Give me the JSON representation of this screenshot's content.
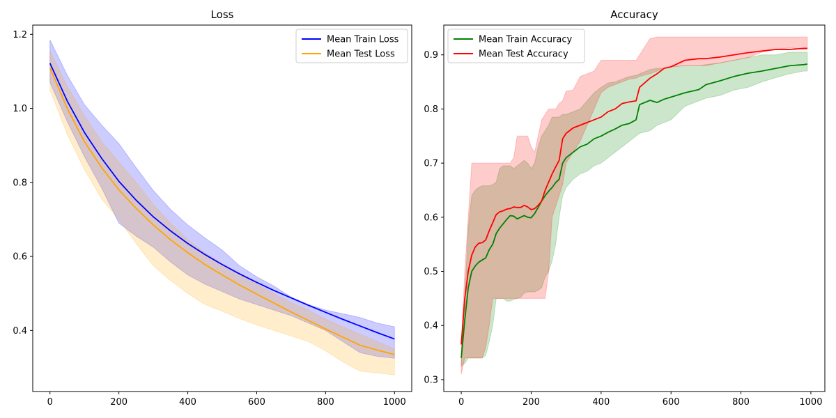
{
  "chart_data": [
    {
      "type": "line",
      "title": "Loss",
      "xlabel": "",
      "ylabel": "",
      "xlim": [
        -50,
        1050
      ],
      "ylim": [
        0.235,
        1.225
      ],
      "xticks": [
        0,
        200,
        400,
        600,
        800,
        1000
      ],
      "yticks": [
        0.4,
        0.6,
        0.8,
        1.0,
        1.2
      ],
      "ytick_decimals": 1,
      "legend": "top-right",
      "grid": false,
      "series": [
        {
          "name": "Mean Train Loss",
          "color": "#0000ff",
          "band_color": "#0000ff",
          "x": [
            0,
            50,
            100,
            150,
            200,
            250,
            300,
            350,
            400,
            450,
            500,
            550,
            600,
            650,
            700,
            750,
            800,
            850,
            900,
            950,
            1000
          ],
          "y": [
            1.122,
            1.02,
            0.935,
            0.865,
            0.803,
            0.752,
            0.707,
            0.669,
            0.635,
            0.605,
            0.578,
            0.553,
            0.53,
            0.508,
            0.488,
            0.468,
            0.449,
            0.43,
            0.412,
            0.394,
            0.377
          ],
          "upper": [
            1.185,
            1.09,
            1.01,
            0.955,
            0.905,
            0.84,
            0.778,
            0.727,
            0.685,
            0.65,
            0.617,
            0.575,
            0.545,
            0.52,
            0.49,
            0.47,
            0.455,
            0.445,
            0.435,
            0.42,
            0.41
          ],
          "lower": [
            1.07,
            0.965,
            0.87,
            0.785,
            0.69,
            0.655,
            0.625,
            0.585,
            0.55,
            0.525,
            0.505,
            0.485,
            0.47,
            0.455,
            0.44,
            0.42,
            0.4,
            0.37,
            0.34,
            0.33,
            0.325
          ]
        },
        {
          "name": "Mean Test Loss",
          "color": "#ffa500",
          "band_color": "#ffa500",
          "x": [
            0,
            50,
            100,
            150,
            200,
            250,
            300,
            350,
            400,
            450,
            500,
            550,
            600,
            650,
            700,
            750,
            800,
            850,
            900,
            950,
            1000
          ],
          "y": [
            1.11,
            1.0,
            0.91,
            0.84,
            0.78,
            0.73,
            0.685,
            0.645,
            0.61,
            0.578,
            0.55,
            0.523,
            0.498,
            0.474,
            0.45,
            0.427,
            0.404,
            0.382,
            0.36,
            0.347,
            0.335
          ],
          "upper": [
            1.155,
            1.06,
            0.98,
            0.91,
            0.855,
            0.8,
            0.74,
            0.69,
            0.645,
            0.61,
            0.58,
            0.552,
            0.525,
            0.5,
            0.475,
            0.455,
            0.43,
            0.41,
            0.39,
            0.37,
            0.35
          ],
          "lower": [
            1.05,
            0.93,
            0.835,
            0.755,
            0.7,
            0.635,
            0.575,
            0.535,
            0.5,
            0.47,
            0.452,
            0.432,
            0.415,
            0.4,
            0.385,
            0.37,
            0.345,
            0.315,
            0.29,
            0.285,
            0.28
          ]
        }
      ]
    },
    {
      "type": "line",
      "title": "Accuracy",
      "xlabel": "",
      "ylabel": "",
      "xlim": [
        -50,
        1040
      ],
      "ylim": [
        0.278,
        0.955
      ],
      "xticks": [
        0,
        200,
        400,
        600,
        800,
        1000
      ],
      "yticks": [
        0.3,
        0.4,
        0.5,
        0.6,
        0.7,
        0.8,
        0.9
      ],
      "ytick_decimals": 1,
      "legend": "top-left",
      "grid": false,
      "series": [
        {
          "name": "Mean Train Accuracy",
          "color": "#008000",
          "band_color": "#008000",
          "x": [
            0,
            10,
            20,
            30,
            40,
            50,
            60,
            70,
            80,
            90,
            100,
            110,
            120,
            130,
            140,
            150,
            160,
            170,
            180,
            190,
            200,
            210,
            220,
            230,
            240,
            250,
            260,
            270,
            280,
            290,
            300,
            320,
            340,
            360,
            380,
            400,
            420,
            440,
            460,
            480,
            500,
            510,
            540,
            560,
            580,
            600,
            640,
            680,
            700,
            740,
            780,
            820,
            860,
            900,
            940,
            980,
            990
          ],
          "y": [
            0.34,
            0.41,
            0.47,
            0.5,
            0.51,
            0.517,
            0.521,
            0.525,
            0.54,
            0.55,
            0.57,
            0.58,
            0.588,
            0.596,
            0.603,
            0.602,
            0.597,
            0.6,
            0.603,
            0.6,
            0.599,
            0.607,
            0.618,
            0.63,
            0.64,
            0.648,
            0.655,
            0.664,
            0.67,
            0.7,
            0.71,
            0.72,
            0.73,
            0.735,
            0.745,
            0.75,
            0.757,
            0.763,
            0.77,
            0.773,
            0.78,
            0.808,
            0.816,
            0.812,
            0.818,
            0.822,
            0.83,
            0.836,
            0.845,
            0.852,
            0.86,
            0.866,
            0.87,
            0.875,
            0.88,
            0.882,
            0.883
          ],
          "upper": [
            0.345,
            0.45,
            0.58,
            0.64,
            0.65,
            0.655,
            0.658,
            0.658,
            0.658,
            0.66,
            0.665,
            0.69,
            0.695,
            0.695,
            0.695,
            0.69,
            0.695,
            0.7,
            0.705,
            0.7,
            0.69,
            0.7,
            0.73,
            0.75,
            0.76,
            0.77,
            0.785,
            0.785,
            0.785,
            0.79,
            0.79,
            0.795,
            0.8,
            0.815,
            0.83,
            0.84,
            0.848,
            0.85,
            0.855,
            0.86,
            0.862,
            0.865,
            0.873,
            0.875,
            0.875,
            0.878,
            0.88,
            0.88,
            0.882,
            0.885,
            0.89,
            0.895,
            0.9,
            0.9,
            0.905,
            0.905,
            0.905
          ],
          "lower": [
            0.325,
            0.33,
            0.34,
            0.34,
            0.34,
            0.34,
            0.34,
            0.345,
            0.37,
            0.4,
            0.45,
            0.45,
            0.45,
            0.445,
            0.445,
            0.448,
            0.45,
            0.452,
            0.46,
            0.462,
            0.462,
            0.462,
            0.465,
            0.47,
            0.49,
            0.5,
            0.52,
            0.55,
            0.6,
            0.64,
            0.655,
            0.67,
            0.68,
            0.685,
            0.695,
            0.7,
            0.71,
            0.72,
            0.73,
            0.74,
            0.75,
            0.755,
            0.76,
            0.77,
            0.775,
            0.78,
            0.805,
            0.815,
            0.82,
            0.825,
            0.835,
            0.84,
            0.85,
            0.858,
            0.865,
            0.87,
            0.87
          ]
        },
        {
          "name": "Mean Test Accuracy",
          "color": "#ff0000",
          "band_color": "#ff0000",
          "x": [
            0,
            10,
            20,
            30,
            40,
            50,
            60,
            70,
            80,
            90,
            100,
            110,
            120,
            130,
            140,
            150,
            160,
            170,
            180,
            190,
            200,
            210,
            220,
            230,
            240,
            250,
            260,
            270,
            280,
            290,
            300,
            320,
            340,
            360,
            380,
            400,
            420,
            440,
            460,
            480,
            500,
            510,
            540,
            560,
            580,
            600,
            640,
            680,
            700,
            740,
            780,
            820,
            860,
            900,
            940,
            980,
            990
          ],
          "y": [
            0.365,
            0.45,
            0.5,
            0.53,
            0.545,
            0.552,
            0.553,
            0.558,
            0.575,
            0.59,
            0.605,
            0.61,
            0.612,
            0.615,
            0.616,
            0.619,
            0.618,
            0.618,
            0.622,
            0.619,
            0.614,
            0.616,
            0.622,
            0.63,
            0.65,
            0.665,
            0.68,
            0.693,
            0.705,
            0.745,
            0.755,
            0.765,
            0.77,
            0.775,
            0.78,
            0.785,
            0.795,
            0.8,
            0.81,
            0.813,
            0.815,
            0.84,
            0.857,
            0.865,
            0.875,
            0.878,
            0.89,
            0.893,
            0.893,
            0.896,
            0.9,
            0.904,
            0.907,
            0.91,
            0.91,
            0.912,
            0.912
          ],
          "upper": [
            0.36,
            0.5,
            0.6,
            0.7,
            0.7,
            0.7,
            0.7,
            0.7,
            0.7,
            0.7,
            0.7,
            0.7,
            0.7,
            0.7,
            0.7,
            0.71,
            0.75,
            0.75,
            0.75,
            0.75,
            0.73,
            0.72,
            0.75,
            0.78,
            0.79,
            0.8,
            0.8,
            0.8,
            0.81,
            0.815,
            0.833,
            0.835,
            0.86,
            0.865,
            0.87,
            0.89,
            0.89,
            0.89,
            0.89,
            0.89,
            0.89,
            0.9,
            0.93,
            0.933,
            0.933,
            0.933,
            0.933,
            0.933,
            0.933,
            0.933,
            0.933,
            0.933,
            0.933,
            0.933,
            0.933,
            0.933,
            0.933
          ],
          "lower": [
            0.31,
            0.34,
            0.34,
            0.34,
            0.34,
            0.34,
            0.34,
            0.36,
            0.4,
            0.45,
            0.45,
            0.45,
            0.45,
            0.45,
            0.45,
            0.45,
            0.45,
            0.45,
            0.45,
            0.45,
            0.45,
            0.45,
            0.45,
            0.45,
            0.45,
            0.5,
            0.6,
            0.62,
            0.64,
            0.66,
            0.7,
            0.72,
            0.74,
            0.77,
            0.8,
            0.83,
            0.84,
            0.845,
            0.85,
            0.855,
            0.857,
            0.86,
            0.865,
            0.87,
            0.875,
            0.878,
            0.88,
            0.88,
            0.88,
            0.885,
            0.89,
            0.895,
            0.905,
            0.91,
            0.913,
            0.91,
            0.91
          ]
        }
      ]
    }
  ]
}
